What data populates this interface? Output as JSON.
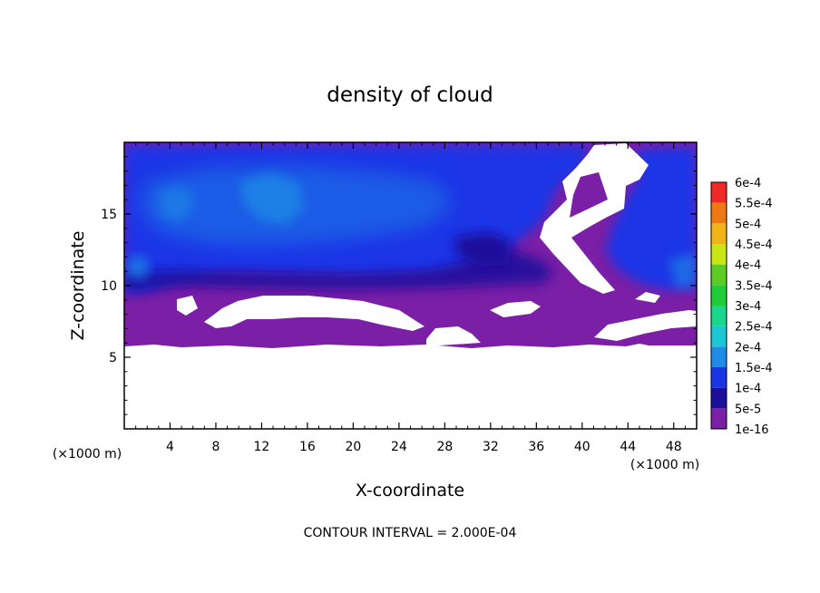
{
  "chart_data": {
    "type": "heatmap",
    "title": "density of cloud",
    "xlabel": "X-coordinate",
    "ylabel": "Z-coordinate",
    "x_unit_left": "(×1000 m)",
    "x_unit_right": "(×1000 m)",
    "footer": "CONTOUR INTERVAL = 2.000E-04",
    "xlim": [
      0,
      50
    ],
    "ylim": [
      0,
      20
    ],
    "x_ticks": [
      4,
      8,
      12,
      16,
      20,
      24,
      28,
      32,
      36,
      40,
      44,
      48
    ],
    "x_tick_labels": [
      "4",
      "8",
      "12",
      "16",
      "20",
      "24",
      "28",
      "32",
      "36",
      "40",
      "44",
      "48"
    ],
    "y_ticks": [
      5,
      10,
      15
    ],
    "y_tick_labels": [
      "5",
      "10",
      "15"
    ],
    "colorbar": {
      "labels": [
        "1e-16",
        "5e-5",
        "1e-4",
        "1.5e-4",
        "2e-4",
        "2.5e-4",
        "3e-4",
        "3.5e-4",
        "4e-4",
        "4.5e-4",
        "5e-4",
        "5.5e-4",
        "6e-4"
      ],
      "colors": [
        "#7a1fa6",
        "#1b0f9c",
        "#1a35e6",
        "#1e8ce6",
        "#19c8d2",
        "#18d68a",
        "#1fcc3a",
        "#5ccc24",
        "#c8e614",
        "#f0b414",
        "#f07814",
        "#f02828",
        "#f0829a"
      ]
    },
    "regions": {
      "cloud_base_z": 5.9,
      "dense_layer_z": [
        9.6,
        11.2
      ],
      "max_core": {
        "x": 13,
        "z": 16.5,
        "value": 0.00015
      }
    }
  }
}
